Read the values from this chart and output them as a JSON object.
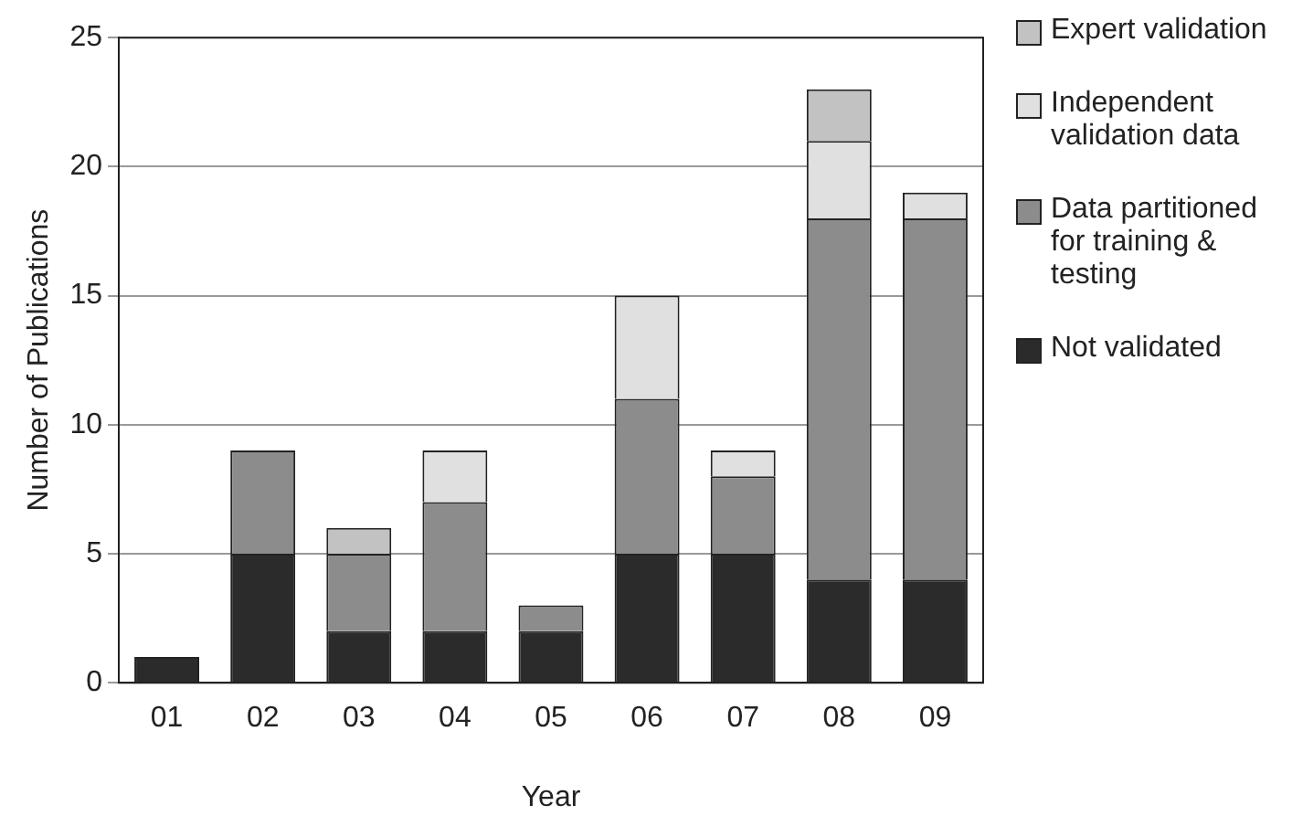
{
  "chart_data": {
    "type": "bar",
    "stacked": true,
    "xlabel": "Year",
    "ylabel": "Number of Publications",
    "categories": [
      "01",
      "02",
      "03",
      "04",
      "05",
      "06",
      "07",
      "08",
      "09"
    ],
    "series": [
      {
        "name": "Not validated",
        "color": "#2b2b2b",
        "values": [
          1,
          5,
          2,
          2,
          2,
          5,
          5,
          4,
          4
        ]
      },
      {
        "name": "Data partitioned for training & testing",
        "color": "#8c8c8c",
        "values": [
          0,
          4,
          3,
          5,
          1,
          6,
          3,
          14,
          14
        ]
      },
      {
        "name": "Independent validation data",
        "color": "#e0e0e0",
        "values": [
          0,
          0,
          0,
          2,
          0,
          4,
          1,
          3,
          1
        ]
      },
      {
        "name": "Expert validation",
        "color": "#c2c2c2",
        "values": [
          0,
          0,
          1,
          0,
          0,
          0,
          0,
          2,
          0
        ]
      }
    ],
    "ylim": [
      0,
      25
    ],
    "yticks": [
      0,
      5,
      10,
      15,
      20,
      25
    ],
    "grid": "y",
    "legend": "right"
  }
}
